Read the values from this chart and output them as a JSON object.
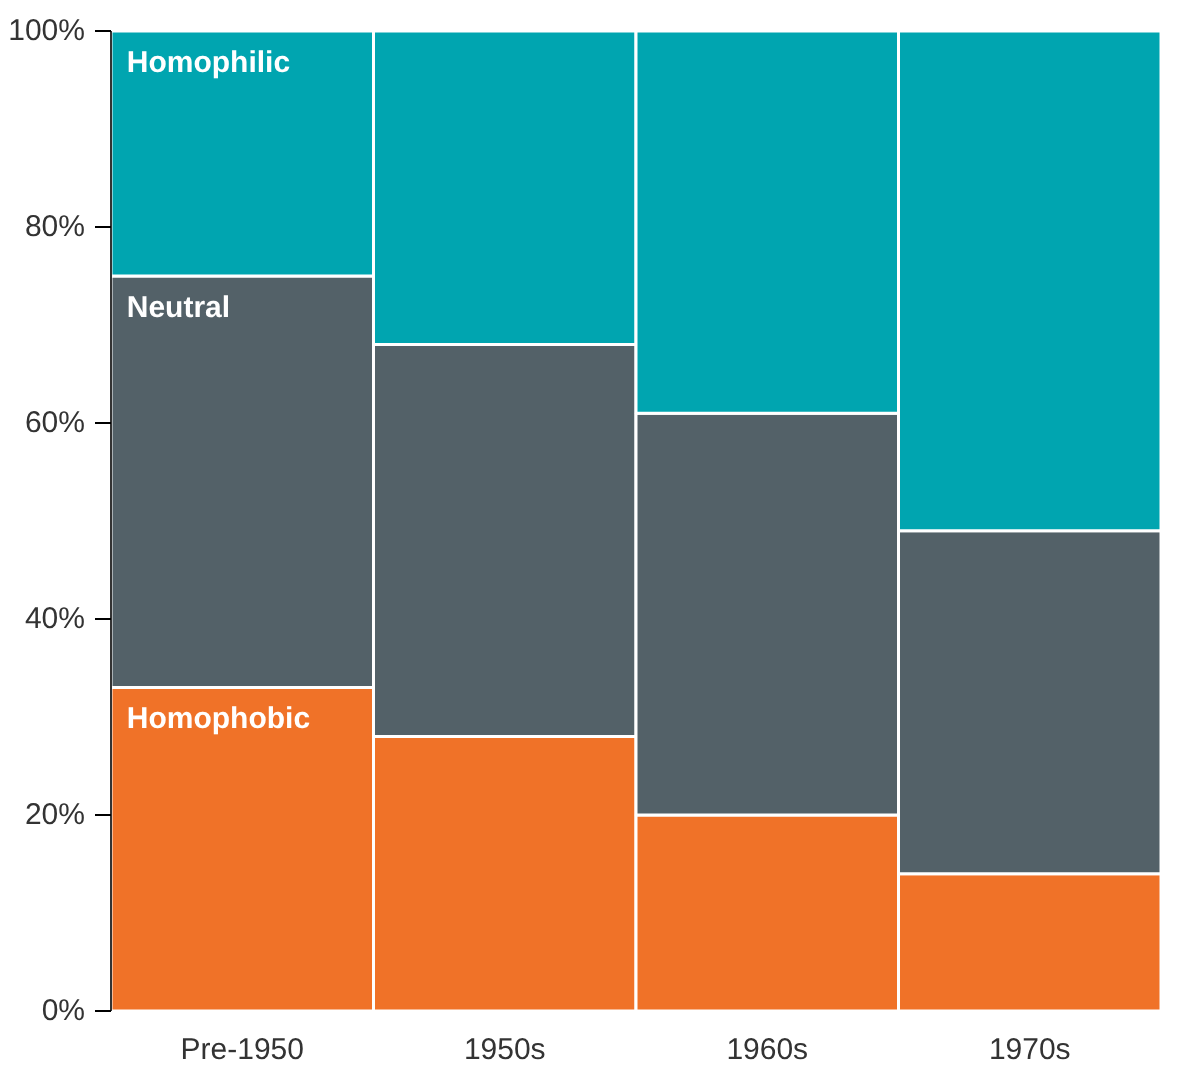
{
  "chart_data": {
    "type": "bar",
    "stacked": true,
    "categories": [
      "Pre-1950",
      "1950s",
      "1960s",
      "1970s"
    ],
    "series": [
      {
        "name": "Homophobic",
        "color": "#f07228",
        "values": [
          33,
          28,
          20,
          14
        ]
      },
      {
        "name": "Neutral",
        "color": "#536168",
        "values": [
          42,
          40,
          41,
          35
        ]
      },
      {
        "name": "Homophilic",
        "color": "#00a5b0",
        "values": [
          25,
          32,
          39,
          51
        ]
      }
    ],
    "ylim": [
      0,
      100
    ],
    "yticks": [
      {
        "value": 0,
        "label": "0%"
      },
      {
        "value": 20,
        "label": "20%"
      },
      {
        "value": 40,
        "label": "40%"
      },
      {
        "value": 60,
        "label": "60%"
      },
      {
        "value": 80,
        "label": "80%"
      },
      {
        "value": 100,
        "label": "100%"
      }
    ]
  }
}
